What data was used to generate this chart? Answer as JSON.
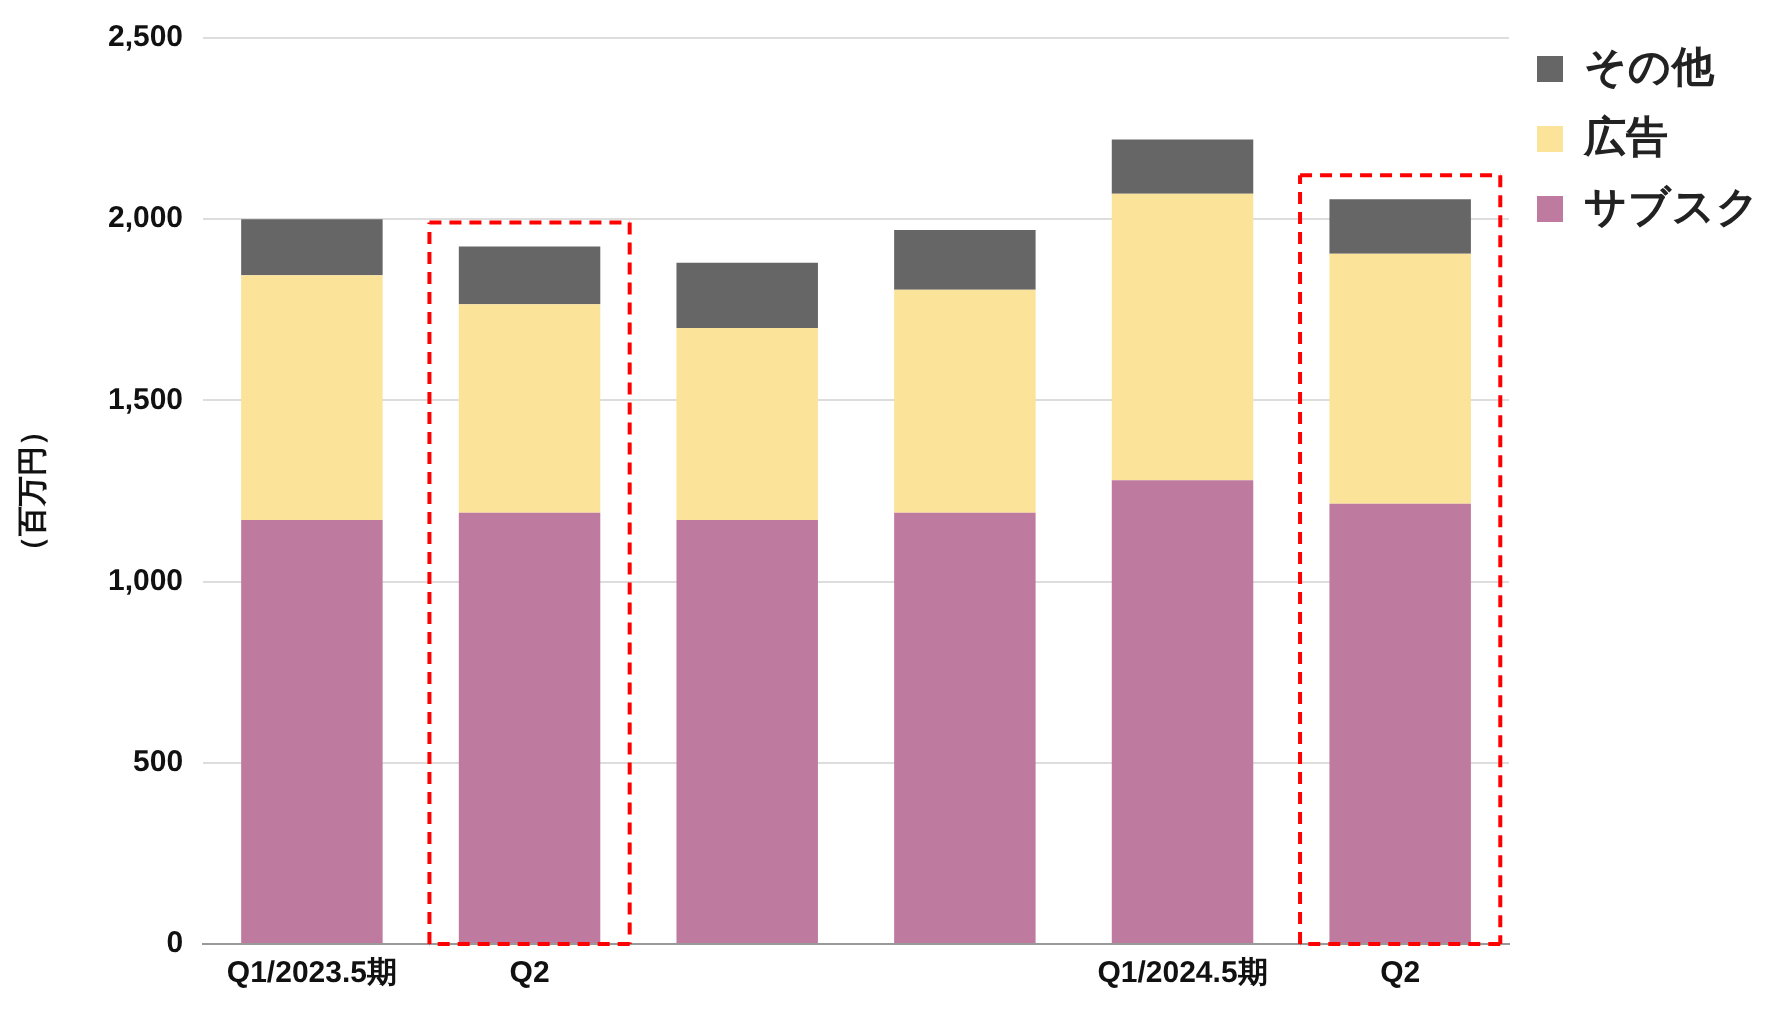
{
  "chart_data": {
    "type": "bar",
    "stacked": true,
    "ylabel": "（百万円）",
    "categories": [
      "Q1/2023.5期",
      "Q2",
      null,
      null,
      "Q1/2024.5期",
      "Q2"
    ],
    "series": [
      {
        "name": "サブスク",
        "color": "#bf7a9f",
        "values": [
          1170,
          1190,
          1170,
          1190,
          1280,
          1215
        ]
      },
      {
        "name": "広告",
        "color": "#fce39a",
        "values": [
          675,
          575,
          530,
          615,
          790,
          690
        ]
      },
      {
        "name": "その他",
        "color": "#666666",
        "values": [
          155,
          160,
          180,
          165,
          150,
          150
        ]
      }
    ],
    "ylim": [
      0,
      2500
    ],
    "yticks": [
      0,
      {
        "value": 500,
        "label": "500"
      },
      {
        "value": 1000,
        "label": "1,000"
      },
      {
        "value": 1500,
        "label": "1,500"
      },
      {
        "value": 2000,
        "label": "2,000"
      },
      {
        "value": 2500,
        "label": "2,500"
      }
    ],
    "grid": "y",
    "legend": "top right"
  }
}
